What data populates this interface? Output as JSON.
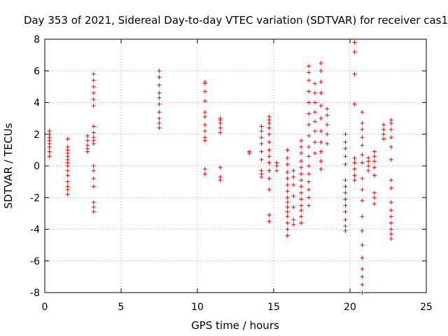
{
  "chart_data": {
    "type": "scatter",
    "title": "Day 353 of 2021, Sidereal Day-to-day VTEC variation (SDTVAR) for receiver cas1",
    "xlabel": "GPS time / hours",
    "ylabel": "SDTVAR / TECUs",
    "xlim": [
      0,
      25
    ],
    "ylim": [
      -8,
      8
    ],
    "xticks": [
      0,
      5,
      10,
      15,
      20,
      25
    ],
    "yticks": [
      -8,
      -6,
      -4,
      -2,
      0,
      2,
      4,
      6,
      8
    ],
    "grid": true,
    "marker": "+",
    "series_color": "#ff0000",
    "clusters": [
      {
        "x": 0.3,
        "y": [
          0.6,
          0.9,
          1.2,
          1.4,
          1.6,
          1.8,
          2.0,
          2.2
        ]
      },
      {
        "x": 1.5,
        "y": [
          -1.8,
          -1.5,
          -1.3,
          -1.0,
          -0.6,
          -0.3,
          0.0,
          0.2,
          0.4,
          0.6,
          0.8,
          1.0,
          1.2,
          1.7
        ]
      },
      {
        "x": 2.8,
        "y": [
          0.9,
          1.1,
          1.3,
          1.6,
          1.9
        ]
      },
      {
        "x": 3.2,
        "y": [
          -2.9,
          -2.6,
          -2.3,
          -1.3,
          -0.8,
          -0.3,
          0.0,
          1.4,
          1.6,
          1.8,
          2.1,
          2.5,
          3.8,
          4.2,
          4.6,
          5.0,
          5.4,
          5.8
        ]
      },
      {
        "x": 7.5,
        "y": [
          2.4,
          2.7,
          3.0,
          3.4,
          3.9,
          4.3,
          4.6,
          5.1,
          5.6,
          6.0
        ]
      },
      {
        "x": 10.5,
        "y": [
          -0.5,
          -0.2,
          1.6,
          1.8,
          2.2,
          2.6,
          3.1,
          3.4,
          4.1,
          4.7,
          5.2,
          5.3
        ]
      },
      {
        "x": 11.5,
        "y": [
          -0.9,
          -0.7,
          -0.1,
          2.1,
          2.4,
          2.7,
          2.9,
          3.0
        ]
      },
      {
        "x": 13.4,
        "y": [
          0.8,
          0.9
        ]
      },
      {
        "x": 14.2,
        "y": [
          -0.7,
          -0.5,
          -0.3,
          0.4,
          0.9,
          1.4,
          1.8,
          2.2,
          2.5
        ]
      },
      {
        "x": 14.7,
        "y": [
          -3.5,
          -3.1,
          -1.5,
          -0.8,
          -0.3,
          0.2,
          0.6,
          1.0,
          1.5,
          2.0,
          2.4,
          2.7,
          2.9,
          3.1
        ]
      },
      {
        "x": 15.2,
        "y": [
          -0.3,
          0.0,
          0.2
        ]
      },
      {
        "x": 15.9,
        "y": [
          -4.4,
          -4.0,
          -3.6,
          -3.2,
          -2.9,
          -2.6,
          -2.3,
          -2.0,
          -1.6,
          -1.2,
          -0.8,
          -0.4,
          0.1,
          0.5,
          1.0
        ]
      },
      {
        "x": 16.3,
        "y": [
          -3.7,
          -3.4,
          -2.6,
          -1.9,
          -1.2,
          -0.7,
          -0.3
        ]
      },
      {
        "x": 16.8,
        "y": [
          -3.6,
          -3.2,
          -2.8,
          -2.5,
          -2.1,
          -1.7,
          -1.3,
          -0.9,
          -0.5,
          -0.1,
          0.3,
          0.8,
          1.2,
          1.6
        ]
      },
      {
        "x": 17.3,
        "y": [
          -2.5,
          -2.0,
          -1.5,
          -1.0,
          -0.5,
          0.0,
          0.6,
          1.2,
          1.9,
          2.6,
          3.3,
          4.0,
          4.7,
          5.4,
          5.9,
          6.3
        ]
      },
      {
        "x": 17.7,
        "y": [
          0.8,
          1.5,
          2.2,
          2.8,
          3.4,
          4.0,
          4.6,
          5.2
        ]
      },
      {
        "x": 18.1,
        "y": [
          -0.2,
          0.3,
          0.9,
          1.5,
          2.2,
          3.0,
          3.8,
          4.6,
          5.3,
          6.0,
          6.5
        ]
      },
      {
        "x": 18.5,
        "y": [
          1.4,
          2.0,
          2.6,
          3.2,
          3.6
        ]
      },
      {
        "x": 19.7,
        "y": [
          -4.1,
          -3.8,
          -3.4,
          -2.9,
          -2.5,
          -2.1,
          -1.7,
          -1.3,
          -0.9,
          0.1,
          0.6,
          1.1,
          1.5,
          2.0
        ]
      },
      {
        "x": 20.3,
        "y": [
          -0.9,
          -0.6,
          -0.2,
          0.2,
          0.5,
          3.9,
          5.8,
          7.2,
          7.8
        ]
      },
      {
        "x": 20.8,
        "y": [
          -8.0,
          -7.5,
          -7.0,
          -6.5,
          -5.8,
          -5.0,
          -4.1,
          -3.2,
          -2.2,
          -1.5,
          -0.8,
          0.2,
          0.7,
          1.3,
          1.8,
          2.3,
          2.7,
          3.4
        ]
      },
      {
        "x": 21.2,
        "y": [
          -0.3,
          0.0,
          0.3,
          0.5
        ]
      },
      {
        "x": 21.6,
        "y": [
          -2.4,
          -2.0,
          -1.7,
          -0.6,
          -0.1,
          0.3,
          0.6,
          0.9
        ]
      },
      {
        "x": 22.2,
        "y": [
          1.7,
          2.0,
          2.3,
          2.6
        ]
      },
      {
        "x": 22.7,
        "y": [
          -4.6,
          -4.3,
          -4.0,
          -3.6,
          -3.2,
          -2.8,
          -2.3,
          -1.4,
          -0.9,
          0.4,
          1.2,
          1.8,
          2.3,
          2.7,
          2.9
        ]
      }
    ]
  }
}
